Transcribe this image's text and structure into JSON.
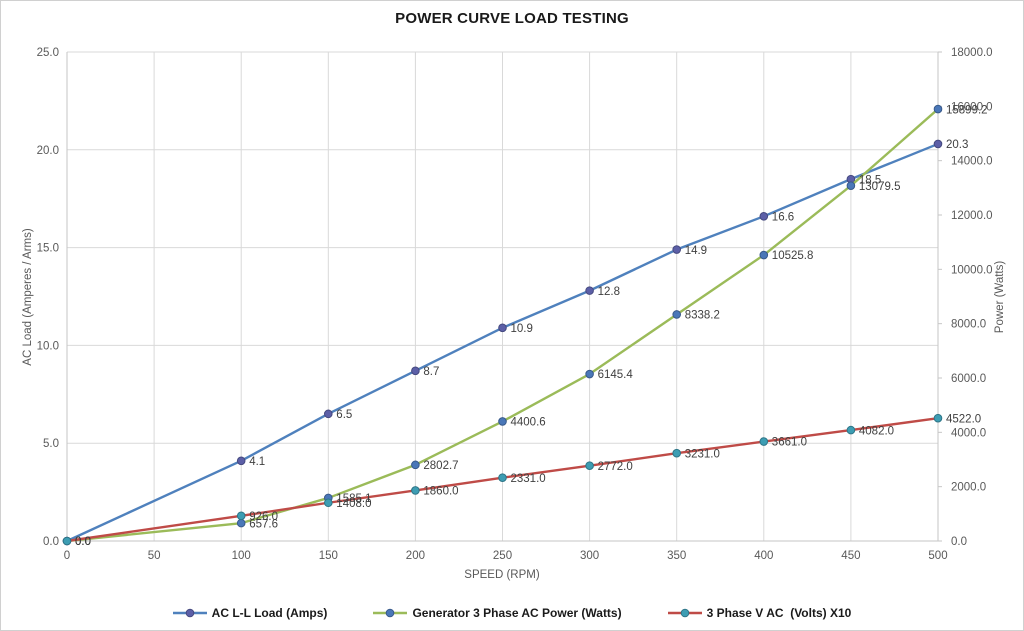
{
  "title": "POWER CURVE LOAD TESTING",
  "chart_data": {
    "type": "line",
    "title": "POWER CURVE LOAD TESTING",
    "x_axis": {
      "title": "SPEED (RPM)",
      "min": 0,
      "max": 500,
      "tick_labels": [
        "0",
        "50",
        "100",
        "150",
        "200",
        "250",
        "300",
        "350",
        "400",
        "450",
        "500"
      ]
    },
    "left_axis": {
      "title": "AC Load (Amperes / Arms)",
      "min": 0,
      "max": 25,
      "tick_labels": [
        "0.0",
        "5.0",
        "10.0",
        "15.0",
        "20.0",
        "25.0"
      ]
    },
    "right_axis": {
      "title": "Power (Watts)",
      "min": 0,
      "max": 18000,
      "tick_labels": [
        "0.0",
        "2000.0",
        "4000.0",
        "6000.0",
        "8000.0",
        "10000.0",
        "12000.0",
        "14000.0",
        "16000.0",
        "18000.0"
      ]
    },
    "x": [
      0,
      100,
      150,
      200,
      250,
      300,
      350,
      400,
      450,
      500
    ],
    "series": [
      {
        "name": "AC L-L Load (Amps)",
        "axis": "left",
        "line_color": "#4f81bd",
        "marker_color": "#5c5fa7",
        "marker_edge": "#45497f",
        "values": [
          0.0,
          4.1,
          6.5,
          8.7,
          10.9,
          12.8,
          14.9,
          16.6,
          18.5,
          20.3
        ],
        "labels": [
          "0.0",
          "4.1",
          "6.5",
          "8.7",
          "10.9",
          "12.8",
          "14.9",
          "16.6",
          "18.5",
          "20.3"
        ]
      },
      {
        "name": "Generator 3 Phase AC Power (Watts)",
        "axis": "right",
        "line_color": "#9bbb59",
        "marker_color": "#4a77b8",
        "marker_edge": "#38598a",
        "values": [
          0.0,
          657.6,
          1585.1,
          2802.7,
          4400.6,
          6145.4,
          8338.2,
          10525.8,
          13079.5,
          15899.2
        ],
        "labels": [
          "0.0",
          "657.6",
          "1585.1",
          "2802.7",
          "4400.6",
          "6145.4",
          "8338.2",
          "10525.8",
          "13079.5",
          "15899.2"
        ]
      },
      {
        "name": "3 Phase V AC  (Volts) X10",
        "axis": "right",
        "line_color": "#bf4b47",
        "marker_color": "#3d9db3",
        "marker_edge": "#2e7587",
        "values": [
          0.0,
          926.0,
          1408.0,
          1860.0,
          2331.0,
          2772.0,
          3231.0,
          3661.0,
          4082.0,
          4522.0
        ],
        "labels": [
          "0.0",
          "926.0",
          "1408.0",
          "1860.0",
          "2331.0",
          "2772.0",
          "3231.0",
          "3661.0",
          "4082.0",
          "4522.0"
        ]
      }
    ],
    "grid": true,
    "legend_position": "bottom"
  },
  "colors": {
    "grid": "#d9d9d9",
    "axis_line": "#c6c6c6",
    "tick_text": "#595959",
    "data_label": "#3f3f3f",
    "title_text": "#1a1a1a",
    "legend_text": "#1a1a1a",
    "background": "#ffffff"
  }
}
